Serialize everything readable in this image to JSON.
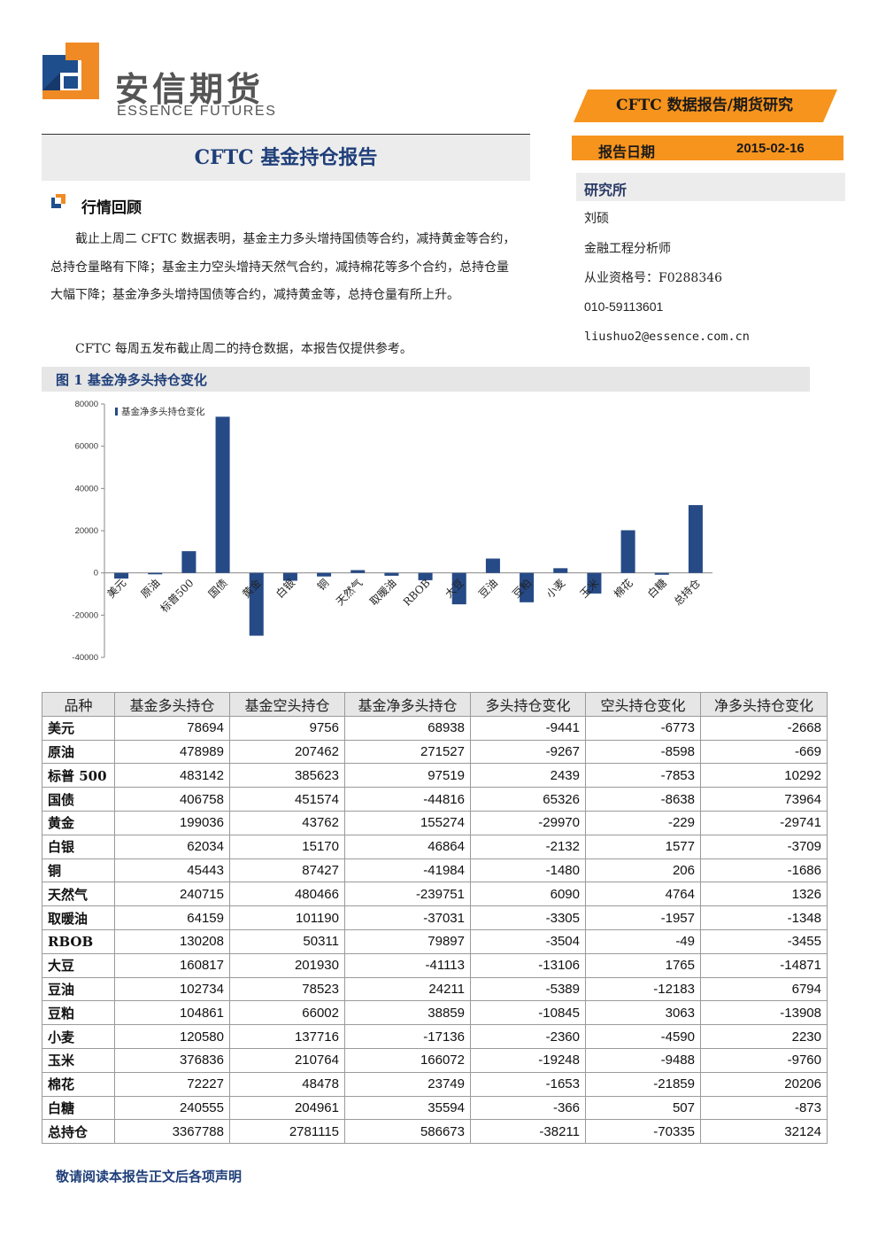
{
  "logo": {
    "cn": "安信期货",
    "en": "ESSENCE FUTURES"
  },
  "banner": "CFTC 数据报告/期货研究",
  "title": "CFTC 基金持仓报告",
  "report_date": {
    "label": "报告日期",
    "value": "2015-02-16"
  },
  "research": {
    "title": "研究所",
    "lines": [
      "刘硕",
      "金融工程分析师",
      "从业资格号：F0288346",
      "010-59113601",
      "liushuo2@essence.com.cn"
    ]
  },
  "section": {
    "title": "行情回顾",
    "paragraphs": [
      "截止上周二 CFTC 数据表明，基金主力多头增持国债等合约，减持黄金等合约，总持仓量略有下降；基金主力空头增持天然气合约，减持棉花等多个合约，总持仓量大幅下降；基金净多头增持国债等合约，减持黄金等，总持仓量有所上升。",
      "CFTC 每周五发布截止周二的持仓数据，本报告仅提供参考。"
    ]
  },
  "figure": {
    "title": "图 1 基金净多头持仓变化"
  },
  "chart_data": {
    "type": "bar",
    "categories": [
      "美元",
      "原油",
      "标普500",
      "国债",
      "黄金",
      "白银",
      "铜",
      "天然气",
      "取暖油",
      "RBOB",
      "大豆",
      "豆油",
      "豆粕",
      "小麦",
      "玉米",
      "棉花",
      "白糖",
      "总持仓"
    ],
    "series": [
      {
        "name": "基金净多头持仓变化",
        "values": [
          -2668,
          -669,
          10292,
          73964,
          -29741,
          -3709,
          -1686,
          1326,
          -1348,
          -3455,
          -14871,
          6794,
          -13908,
          2230,
          -9760,
          20206,
          -873,
          32124
        ]
      }
    ],
    "yticks": [
      "80000",
      "60000",
      "40000",
      "20000",
      "0",
      "-20000",
      "-40000"
    ],
    "ylim": [
      -40000,
      80000
    ],
    "legend_position": "top-left",
    "bar_color": "#264a86",
    "grid": false
  },
  "table": {
    "headers": [
      "品种",
      "基金多头持仓",
      "基金空头持仓",
      "基金净多头持仓",
      "多头持仓变化",
      "空头持仓变化",
      "净多头持仓变化"
    ],
    "rows": [
      [
        "美元",
        "78694",
        "9756",
        "68938",
        "-9441",
        "-6773",
        "-2668"
      ],
      [
        "原油",
        "478989",
        "207462",
        "271527",
        "-9267",
        "-8598",
        "-669"
      ],
      [
        "标普 500",
        "483142",
        "385623",
        "97519",
        "2439",
        "-7853",
        "10292"
      ],
      [
        "国债",
        "406758",
        "451574",
        "-44816",
        "65326",
        "-8638",
        "73964"
      ],
      [
        "黄金",
        "199036",
        "43762",
        "155274",
        "-29970",
        "-229",
        "-29741"
      ],
      [
        "白银",
        "62034",
        "15170",
        "46864",
        "-2132",
        "1577",
        "-3709"
      ],
      [
        "铜",
        "45443",
        "87427",
        "-41984",
        "-1480",
        "206",
        "-1686"
      ],
      [
        "天然气",
        "240715",
        "480466",
        "-239751",
        "6090",
        "4764",
        "1326"
      ],
      [
        "取暖油",
        "64159",
        "101190",
        "-37031",
        "-3305",
        "-1957",
        "-1348"
      ],
      [
        "RBOB",
        "130208",
        "50311",
        "79897",
        "-3504",
        "-49",
        "-3455"
      ],
      [
        "大豆",
        "160817",
        "201930",
        "-41113",
        "-13106",
        "1765",
        "-14871"
      ],
      [
        "豆油",
        "102734",
        "78523",
        "24211",
        "-5389",
        "-12183",
        "6794"
      ],
      [
        "豆粕",
        "104861",
        "66002",
        "38859",
        "-10845",
        "3063",
        "-13908"
      ],
      [
        "小麦",
        "120580",
        "137716",
        "-17136",
        "-2360",
        "-4590",
        "2230"
      ],
      [
        "玉米",
        "376836",
        "210764",
        "166072",
        "-19248",
        "-9488",
        "-9760"
      ],
      [
        "棉花",
        "72227",
        "48478",
        "23749",
        "-1653",
        "-21859",
        "20206"
      ],
      [
        "白糖",
        "240555",
        "204961",
        "35594",
        "-366",
        "507",
        "-873"
      ],
      [
        "总持仓",
        "3367788",
        "2781115",
        "586673",
        "-38211",
        "-70335",
        "32124"
      ]
    ]
  },
  "footer": "敬请阅读本报告正文后各项声明",
  "colors": {
    "orange": "#f7941d",
    "navy": "#1f3f7a",
    "logo_blue": "#1f4e8c",
    "logo_orange": "#f08a24"
  }
}
